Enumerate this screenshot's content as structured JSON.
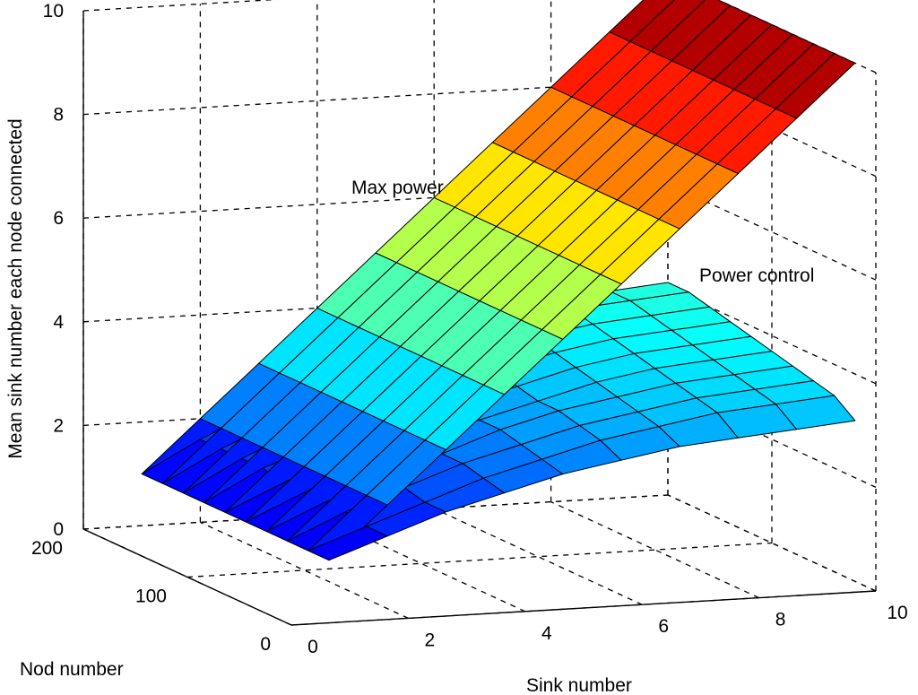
{
  "chart_data": {
    "type": "surface",
    "title": "",
    "xlabel": "Sink number",
    "ylabel": "Nod number",
    "zlabel": "Mean sink number each node connected",
    "xlim": [
      0,
      10
    ],
    "ylim": [
      0,
      200
    ],
    "zlim": [
      0,
      10
    ],
    "x_ticks": [
      "0",
      "2",
      "4",
      "6",
      "8",
      "10"
    ],
    "y_ticks": [
      "0",
      "100",
      "200"
    ],
    "z_ticks": [
      "0",
      "2",
      "4",
      "6",
      "8",
      "10"
    ],
    "grid": true,
    "colormap": "jet",
    "annotations": [
      "Max power",
      "Power control"
    ],
    "x": [
      1,
      2,
      3,
      4,
      5,
      6,
      7,
      8,
      9,
      10
    ],
    "y": [
      20,
      40,
      60,
      80,
      100,
      120,
      140,
      160,
      180,
      200
    ],
    "series": [
      {
        "name": "Max power",
        "surface": [
          [
            1.0,
            2.0,
            3.0,
            4.0,
            5.0,
            6.0,
            7.0,
            8.0,
            9.0,
            10.0
          ],
          [
            1.0,
            2.0,
            3.0,
            4.0,
            5.0,
            6.0,
            7.0,
            8.0,
            9.0,
            10.0
          ],
          [
            1.0,
            2.0,
            3.0,
            4.0,
            5.0,
            6.0,
            7.0,
            8.0,
            9.0,
            10.0
          ],
          [
            1.0,
            2.0,
            3.0,
            4.0,
            5.0,
            6.0,
            7.0,
            8.0,
            9.0,
            10.0
          ],
          [
            1.0,
            2.0,
            3.0,
            4.0,
            5.0,
            6.0,
            7.0,
            8.0,
            9.0,
            10.0
          ],
          [
            1.0,
            2.0,
            3.0,
            4.0,
            5.0,
            6.0,
            7.0,
            8.0,
            9.0,
            10.0
          ],
          [
            1.0,
            2.0,
            3.0,
            4.0,
            5.0,
            6.0,
            7.0,
            8.0,
            9.0,
            10.0
          ],
          [
            1.0,
            2.0,
            3.0,
            4.0,
            5.0,
            6.0,
            7.0,
            8.0,
            9.0,
            10.0
          ],
          [
            1.0,
            2.0,
            3.0,
            4.0,
            5.0,
            6.0,
            7.0,
            8.0,
            9.0,
            10.0
          ],
          [
            1.0,
            2.0,
            3.0,
            4.0,
            5.0,
            6.0,
            7.0,
            8.0,
            9.0,
            10.0
          ]
        ]
      },
      {
        "name": "Power control",
        "surface": [
          [
            1.0,
            1.4,
            1.8,
            2.1,
            2.4,
            2.6,
            2.8,
            2.9,
            3.0,
            3.1
          ],
          [
            1.0,
            1.4,
            1.8,
            2.2,
            2.5,
            2.8,
            3.0,
            3.2,
            3.3,
            3.4
          ],
          [
            1.0,
            1.5,
            1.9,
            2.3,
            2.6,
            2.9,
            3.1,
            3.3,
            3.4,
            3.5
          ],
          [
            1.0,
            1.5,
            1.9,
            2.3,
            2.7,
            3.0,
            3.2,
            3.4,
            3.5,
            3.6
          ],
          [
            1.0,
            1.5,
            2.0,
            2.4,
            2.7,
            3.0,
            3.3,
            3.5,
            3.6,
            3.7
          ],
          [
            1.0,
            1.5,
            2.0,
            2.4,
            2.8,
            3.1,
            3.4,
            3.6,
            3.7,
            3.8
          ],
          [
            1.0,
            1.6,
            2.0,
            2.5,
            2.9,
            3.2,
            3.5,
            3.7,
            3.8,
            3.9
          ],
          [
            1.0,
            1.6,
            2.1,
            2.5,
            2.9,
            3.3,
            3.6,
            3.8,
            3.9,
            4.0
          ],
          [
            1.0,
            1.6,
            2.1,
            2.6,
            3.0,
            3.4,
            3.7,
            3.9,
            4.0,
            4.1
          ],
          [
            1.0,
            1.6,
            2.1,
            2.6,
            3.0,
            3.4,
            3.7,
            3.9,
            4.0,
            4.1
          ]
        ]
      }
    ]
  }
}
